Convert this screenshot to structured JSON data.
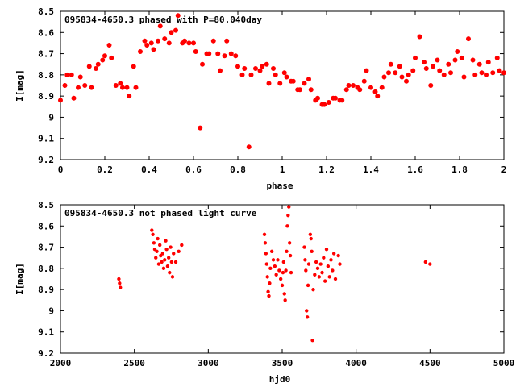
{
  "chart_data": [
    {
      "type": "scatter",
      "title": "095834-4650.3 phased with P=80.040day",
      "xlabel": "phase",
      "ylabel": "I[mag]",
      "xlim": [
        0,
        2
      ],
      "ylim": [
        9.2,
        8.5
      ],
      "y_inverted": true,
      "xticks": [
        "0",
        "0.2",
        "0.4",
        "0.6",
        "0.8",
        "1",
        "1.2",
        "1.4",
        "1.6",
        "1.8",
        "2"
      ],
      "yticks": [
        "8.5",
        "8.6",
        "8.7",
        "8.8",
        "8.9",
        "9",
        "9.1",
        "9.2"
      ],
      "marker_color": "#ff0000",
      "grid": false,
      "series": [
        {
          "points": [
            [
              0.0,
              8.92
            ],
            [
              0.02,
              8.85
            ],
            [
              0.03,
              8.8
            ],
            [
              0.05,
              8.8
            ],
            [
              0.06,
              8.91
            ],
            [
              0.08,
              8.86
            ],
            [
              0.09,
              8.81
            ],
            [
              0.11,
              8.85
            ],
            [
              0.13,
              8.76
            ],
            [
              0.14,
              8.86
            ],
            [
              0.16,
              8.77
            ],
            [
              0.17,
              8.75
            ],
            [
              0.19,
              8.73
            ],
            [
              0.2,
              8.71
            ],
            [
              0.22,
              8.66
            ],
            [
              0.23,
              8.72
            ],
            [
              0.25,
              8.85
            ],
            [
              0.27,
              8.84
            ],
            [
              0.28,
              8.86
            ],
            [
              0.3,
              8.86
            ],
            [
              0.31,
              8.9
            ],
            [
              0.33,
              8.76
            ],
            [
              0.34,
              8.86
            ],
            [
              0.36,
              8.69
            ],
            [
              0.38,
              8.64
            ],
            [
              0.39,
              8.66
            ],
            [
              0.41,
              8.65
            ],
            [
              0.42,
              8.68
            ],
            [
              0.44,
              8.64
            ],
            [
              0.45,
              8.57
            ],
            [
              0.47,
              8.63
            ],
            [
              0.49,
              8.65
            ],
            [
              0.5,
              8.6
            ],
            [
              0.52,
              8.59
            ],
            [
              0.53,
              8.52
            ],
            [
              0.55,
              8.65
            ],
            [
              0.56,
              8.64
            ],
            [
              0.58,
              8.65
            ],
            [
              0.6,
              8.65
            ],
            [
              0.61,
              8.69
            ],
            [
              0.63,
              9.05
            ],
            [
              0.64,
              8.75
            ],
            [
              0.66,
              8.7
            ],
            [
              0.67,
              8.7
            ],
            [
              0.69,
              8.64
            ],
            [
              0.71,
              8.7
            ],
            [
              0.72,
              8.78
            ],
            [
              0.74,
              8.71
            ],
            [
              0.75,
              8.64
            ],
            [
              0.77,
              8.7
            ],
            [
              0.79,
              8.71
            ],
            [
              0.8,
              8.76
            ],
            [
              0.82,
              8.8
            ],
            [
              0.83,
              8.77
            ],
            [
              0.85,
              9.14
            ],
            [
              0.86,
              8.8
            ],
            [
              0.88,
              8.77
            ],
            [
              0.9,
              8.78
            ],
            [
              0.91,
              8.76
            ],
            [
              0.93,
              8.75
            ],
            [
              0.94,
              8.84
            ],
            [
              0.96,
              8.77
            ],
            [
              0.97,
              8.8
            ],
            [
              0.99,
              8.84
            ],
            [
              1.01,
              8.79
            ],
            [
              1.02,
              8.81
            ],
            [
              1.04,
              8.83
            ],
            [
              1.05,
              8.83
            ],
            [
              1.07,
              8.87
            ],
            [
              1.08,
              8.87
            ],
            [
              1.1,
              8.84
            ],
            [
              1.12,
              8.82
            ],
            [
              1.13,
              8.87
            ],
            [
              1.15,
              8.92
            ],
            [
              1.16,
              8.91
            ],
            [
              1.18,
              8.94
            ],
            [
              1.19,
              8.94
            ],
            [
              1.21,
              8.93
            ],
            [
              1.23,
              8.91
            ],
            [
              1.24,
              8.91
            ],
            [
              1.26,
              8.92
            ],
            [
              1.27,
              8.92
            ],
            [
              1.29,
              8.87
            ],
            [
              1.3,
              8.85
            ],
            [
              1.32,
              8.85
            ],
            [
              1.34,
              8.86
            ],
            [
              1.35,
              8.87
            ],
            [
              1.37,
              8.83
            ],
            [
              1.38,
              8.78
            ],
            [
              1.4,
              8.86
            ],
            [
              1.42,
              8.88
            ],
            [
              1.43,
              8.9
            ],
            [
              1.45,
              8.86
            ],
            [
              1.46,
              8.81
            ],
            [
              1.48,
              8.79
            ],
            [
              1.49,
              8.75
            ],
            [
              1.51,
              8.79
            ],
            [
              1.53,
              8.76
            ],
            [
              1.54,
              8.81
            ],
            [
              1.56,
              8.83
            ],
            [
              1.57,
              8.8
            ],
            [
              1.59,
              8.78
            ],
            [
              1.6,
              8.72
            ],
            [
              1.62,
              8.62
            ],
            [
              1.64,
              8.74
            ],
            [
              1.65,
              8.77
            ],
            [
              1.67,
              8.85
            ],
            [
              1.68,
              8.76
            ],
            [
              1.7,
              8.73
            ],
            [
              1.71,
              8.78
            ],
            [
              1.73,
              8.8
            ],
            [
              1.75,
              8.75
            ],
            [
              1.76,
              8.79
            ],
            [
              1.78,
              8.73
            ],
            [
              1.79,
              8.69
            ],
            [
              1.81,
              8.72
            ],
            [
              1.82,
              8.81
            ],
            [
              1.84,
              8.63
            ],
            [
              1.86,
              8.73
            ],
            [
              1.87,
              8.8
            ],
            [
              1.89,
              8.75
            ],
            [
              1.9,
              8.79
            ],
            [
              1.92,
              8.8
            ],
            [
              1.93,
              8.74
            ],
            [
              1.95,
              8.79
            ],
            [
              1.97,
              8.72
            ],
            [
              1.98,
              8.78
            ],
            [
              2.0,
              8.79
            ]
          ]
        }
      ]
    },
    {
      "type": "scatter",
      "title": "095834-4650.3 not phased light curve",
      "xlabel": "hjd0",
      "ylabel": "I[mag]",
      "xlim": [
        2000,
        5000
      ],
      "ylim": [
        9.2,
        8.5
      ],
      "y_inverted": true,
      "xticks": [
        "2000",
        "2500",
        "3000",
        "3500",
        "4000",
        "4500",
        "5000"
      ],
      "yticks": [
        "8.5",
        "8.6",
        "8.7",
        "8.8",
        "8.9",
        "9",
        "9.1",
        "9.2"
      ],
      "marker_color": "#ff0000",
      "grid": false,
      "series": [
        {
          "points": [
            [
              2395,
              8.85
            ],
            [
              2400,
              8.87
            ],
            [
              2405,
              8.89
            ],
            [
              2618,
              8.62
            ],
            [
              2625,
              8.64
            ],
            [
              2632,
              8.68
            ],
            [
              2638,
              8.71
            ],
            [
              2645,
              8.75
            ],
            [
              2652,
              8.72
            ],
            [
              2658,
              8.66
            ],
            [
              2665,
              8.78
            ],
            [
              2672,
              8.69
            ],
            [
              2678,
              8.74
            ],
            [
              2685,
              8.77
            ],
            [
              2692,
              8.73
            ],
            [
              2698,
              8.8
            ],
            [
              2705,
              8.76
            ],
            [
              2712,
              8.67
            ],
            [
              2718,
              8.71
            ],
            [
              2725,
              8.79
            ],
            [
              2732,
              8.75
            ],
            [
              2738,
              8.82
            ],
            [
              2745,
              8.7
            ],
            [
              2752,
              8.77
            ],
            [
              2758,
              8.84
            ],
            [
              2765,
              8.73
            ],
            [
              2780,
              8.77
            ],
            [
              2800,
              8.72
            ],
            [
              2820,
              8.69
            ],
            [
              3380,
              8.64
            ],
            [
              3385,
              8.68
            ],
            [
              3390,
              8.73
            ],
            [
              3395,
              8.78
            ],
            [
              3400,
              8.84
            ],
            [
              3405,
              8.91
            ],
            [
              3410,
              8.93
            ],
            [
              3415,
              8.87
            ],
            [
              3420,
              8.8
            ],
            [
              3430,
              8.72
            ],
            [
              3440,
              8.76
            ],
            [
              3450,
              8.79
            ],
            [
              3460,
              8.83
            ],
            [
              3470,
              8.76
            ],
            [
              3480,
              8.81
            ],
            [
              3490,
              8.85
            ],
            [
              3500,
              8.88
            ],
            [
              3505,
              8.82
            ],
            [
              3510,
              8.77
            ],
            [
              3515,
              8.92
            ],
            [
              3520,
              8.95
            ],
            [
              3525,
              8.81
            ],
            [
              3530,
              8.72
            ],
            [
              3535,
              8.6
            ],
            [
              3540,
              8.55
            ],
            [
              3545,
              8.51
            ],
            [
              3550,
              8.68
            ],
            [
              3555,
              8.74
            ],
            [
              3560,
              8.82
            ],
            [
              3650,
              8.7
            ],
            [
              3655,
              8.76
            ],
            [
              3660,
              8.81
            ],
            [
              3665,
              9.0
            ],
            [
              3670,
              9.03
            ],
            [
              3675,
              8.88
            ],
            [
              3680,
              8.78
            ],
            [
              3690,
              8.64
            ],
            [
              3695,
              8.66
            ],
            [
              3700,
              8.72
            ],
            [
              3705,
              9.14
            ],
            [
              3710,
              8.9
            ],
            [
              3720,
              8.83
            ],
            [
              3730,
              8.77
            ],
            [
              3740,
              8.8
            ],
            [
              3750,
              8.84
            ],
            [
              3760,
              8.78
            ],
            [
              3770,
              8.82
            ],
            [
              3780,
              8.75
            ],
            [
              3790,
              8.86
            ],
            [
              3800,
              8.71
            ],
            [
              3810,
              8.79
            ],
            [
              3820,
              8.84
            ],
            [
              3830,
              8.76
            ],
            [
              3840,
              8.81
            ],
            [
              3850,
              8.73
            ],
            [
              3860,
              8.85
            ],
            [
              3880,
              8.74
            ],
            [
              3890,
              8.78
            ],
            [
              4470,
              8.77
            ],
            [
              4500,
              8.78
            ]
          ]
        }
      ]
    }
  ]
}
